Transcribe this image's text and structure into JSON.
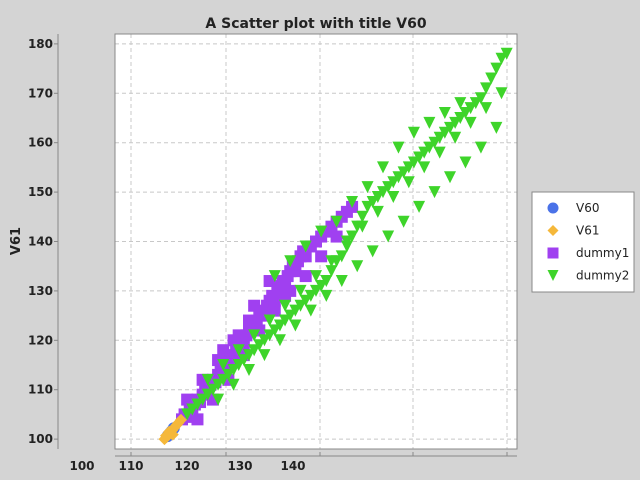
{
  "colors": {
    "background": "#d4d4d4",
    "plot_background": "#ffffff",
    "grid": "#c8c8c8",
    "V60": "#4a72e8",
    "V61": "#f5b83a",
    "dummy1": "#a040f0",
    "dummy2": "#3ed42a"
  },
  "chart_data": {
    "type": "scatter",
    "title": "A Scatter plot with title V60",
    "xlabel": "",
    "ylabel": "V61",
    "xlim": [
      100,
      178
    ],
    "ylim": [
      98,
      182
    ],
    "x_ticks": [
      100,
      110,
      120,
      130,
      140
    ],
    "y_ticks": [
      100,
      110,
      120,
      130,
      140,
      150,
      160,
      170,
      180
    ],
    "grid": true,
    "legend_position": "right",
    "series": [
      {
        "name": "V60",
        "marker": "circle",
        "color": "#4a72e8",
        "points": [
          [
            110.2,
            100.6
          ],
          [
            110.6,
            101.1
          ],
          [
            111.0,
            101.6
          ],
          [
            111.4,
            102.2
          ]
        ]
      },
      {
        "name": "V61",
        "marker": "diamond",
        "color": "#f5b83a",
        "points": [
          [
            109.6,
            100.0
          ],
          [
            110.0,
            100.4
          ],
          [
            110.3,
            100.9
          ],
          [
            110.7,
            101.3
          ],
          [
            111.1,
            101.8
          ],
          [
            111.5,
            102.3
          ],
          [
            111.9,
            102.8
          ],
          [
            112.3,
            103.3
          ],
          [
            109.9,
            100.7
          ],
          [
            110.5,
            101.5
          ],
          [
            111.2,
            100.9
          ],
          [
            112.8,
            103.9
          ]
        ]
      },
      {
        "name": "dummy1",
        "marker": "square",
        "color": "#a040f0",
        "points": [
          [
            113,
            104
          ],
          [
            113.5,
            105
          ],
          [
            114,
            104.5
          ],
          [
            114.5,
            106
          ],
          [
            115,
            105.5
          ],
          [
            115.5,
            107
          ],
          [
            116,
            108
          ],
          [
            116.5,
            107.5
          ],
          [
            117,
            109
          ],
          [
            117.5,
            110
          ],
          [
            118,
            109.5
          ],
          [
            118.5,
            111
          ],
          [
            119,
            112
          ],
          [
            119.5,
            111.5
          ],
          [
            120,
            113
          ],
          [
            120.5,
            114
          ],
          [
            121,
            113.5
          ],
          [
            121.5,
            115
          ],
          [
            122,
            116
          ],
          [
            122.5,
            117
          ],
          [
            123,
            116
          ],
          [
            123.5,
            118
          ],
          [
            124,
            119
          ],
          [
            124.5,
            120
          ],
          [
            125,
            119
          ],
          [
            125.5,
            121
          ],
          [
            126,
            122
          ],
          [
            126.5,
            123
          ],
          [
            127,
            122
          ],
          [
            127.5,
            124
          ],
          [
            128,
            125
          ],
          [
            128.5,
            126
          ],
          [
            129,
            125
          ],
          [
            129.5,
            127
          ],
          [
            130,
            128
          ],
          [
            130.5,
            129
          ],
          [
            131,
            128
          ],
          [
            131.5,
            130
          ],
          [
            132,
            131
          ],
          [
            132.5,
            132
          ],
          [
            133,
            131
          ],
          [
            133.5,
            133
          ],
          [
            134,
            134
          ],
          [
            134.5,
            135
          ],
          [
            135,
            134
          ],
          [
            135.5,
            136
          ],
          [
            136,
            137
          ],
          [
            136.5,
            138
          ],
          [
            137,
            137
          ],
          [
            138,
            139
          ],
          [
            139,
            140
          ],
          [
            140,
            141
          ],
          [
            141,
            142
          ],
          [
            142,
            143
          ],
          [
            143,
            144
          ],
          [
            144,
            145
          ],
          [
            145,
            146
          ],
          [
            146,
            147
          ],
          [
            121,
            118
          ],
          [
            124,
            121
          ],
          [
            127,
            127
          ],
          [
            130,
            132
          ],
          [
            133,
            129
          ],
          [
            128,
            122
          ],
          [
            125,
            117
          ],
          [
            122,
            112
          ],
          [
            119,
            108
          ],
          [
            116,
            104
          ],
          [
            134,
            130
          ],
          [
            137,
            133
          ],
          [
            140,
            137
          ],
          [
            143,
            141
          ],
          [
            131,
            126
          ],
          [
            126,
            124
          ],
          [
            123,
            120
          ],
          [
            120,
            116
          ],
          [
            117,
            112
          ],
          [
            114,
            108
          ]
        ]
      },
      {
        "name": "dummy2",
        "marker": "triangle-down",
        "color": "#3ed42a",
        "points": [
          [
            114,
            105
          ],
          [
            115,
            106
          ],
          [
            116,
            107
          ],
          [
            117,
            108
          ],
          [
            118,
            109
          ],
          [
            119,
            110
          ],
          [
            120,
            111
          ],
          [
            121,
            112
          ],
          [
            122,
            113
          ],
          [
            123,
            114
          ],
          [
            124,
            115
          ],
          [
            125,
            116
          ],
          [
            126,
            117
          ],
          [
            127,
            118
          ],
          [
            128,
            119
          ],
          [
            129,
            120
          ],
          [
            130,
            121
          ],
          [
            131,
            122
          ],
          [
            132,
            123
          ],
          [
            133,
            124
          ],
          [
            134,
            125
          ],
          [
            135,
            126
          ],
          [
            136,
            127
          ],
          [
            137,
            128
          ],
          [
            138,
            129
          ],
          [
            139,
            130
          ],
          [
            140,
            131
          ],
          [
            141,
            132
          ],
          [
            142,
            134
          ],
          [
            143,
            136
          ],
          [
            144,
            137
          ],
          [
            145,
            139
          ],
          [
            146,
            141
          ],
          [
            147,
            143
          ],
          [
            148,
            145
          ],
          [
            149,
            147
          ],
          [
            150,
            148
          ],
          [
            151,
            149
          ],
          [
            152,
            150
          ],
          [
            153,
            151
          ],
          [
            154,
            152
          ],
          [
            155,
            153
          ],
          [
            156,
            154
          ],
          [
            157,
            155
          ],
          [
            158,
            156
          ],
          [
            159,
            157
          ],
          [
            160,
            158
          ],
          [
            161,
            159
          ],
          [
            162,
            160
          ],
          [
            163,
            161
          ],
          [
            164,
            162
          ],
          [
            165,
            163
          ],
          [
            166,
            164
          ],
          [
            167,
            165
          ],
          [
            168,
            166
          ],
          [
            169,
            167
          ],
          [
            170,
            168
          ],
          [
            171,
            169
          ],
          [
            172,
            171
          ],
          [
            173,
            173
          ],
          [
            174,
            175
          ],
          [
            175,
            177
          ],
          [
            176,
            178
          ],
          [
            118,
            112
          ],
          [
            121,
            115
          ],
          [
            124,
            118
          ],
          [
            127,
            121
          ],
          [
            130,
            124
          ],
          [
            133,
            127
          ],
          [
            136,
            130
          ],
          [
            139,
            133
          ],
          [
            142,
            136
          ],
          [
            145,
            140
          ],
          [
            148,
            143
          ],
          [
            151,
            146
          ],
          [
            154,
            149
          ],
          [
            157,
            152
          ],
          [
            160,
            155
          ],
          [
            163,
            158
          ],
          [
            166,
            161
          ],
          [
            169,
            164
          ],
          [
            172,
            167
          ],
          [
            175,
            170
          ],
          [
            120,
            108
          ],
          [
            123,
            111
          ],
          [
            126,
            114
          ],
          [
            129,
            117
          ],
          [
            132,
            120
          ],
          [
            135,
            123
          ],
          [
            138,
            126
          ],
          [
            141,
            129
          ],
          [
            144,
            132
          ],
          [
            147,
            135
          ],
          [
            150,
            138
          ],
          [
            153,
            141
          ],
          [
            156,
            144
          ],
          [
            159,
            147
          ],
          [
            162,
            150
          ],
          [
            165,
            153
          ],
          [
            168,
            156
          ],
          [
            171,
            159
          ],
          [
            174,
            163
          ],
          [
            149,
            151
          ],
          [
            152,
            155
          ],
          [
            155,
            159
          ],
          [
            158,
            162
          ],
          [
            161,
            164
          ],
          [
            164,
            166
          ],
          [
            167,
            168
          ],
          [
            146,
            148
          ],
          [
            143,
            144
          ],
          [
            140,
            142
          ],
          [
            137,
            139
          ],
          [
            134,
            136
          ],
          [
            131,
            133
          ]
        ]
      }
    ]
  },
  "legend": {
    "items": [
      {
        "label": "V60",
        "marker": "circle",
        "color": "#4a72e8"
      },
      {
        "label": "V61",
        "marker": "diamond",
        "color": "#f5b83a"
      },
      {
        "label": "dummy1",
        "marker": "square",
        "color": "#a040f0"
      },
      {
        "label": "dummy2",
        "marker": "triangle-down",
        "color": "#3ed42a"
      }
    ]
  }
}
